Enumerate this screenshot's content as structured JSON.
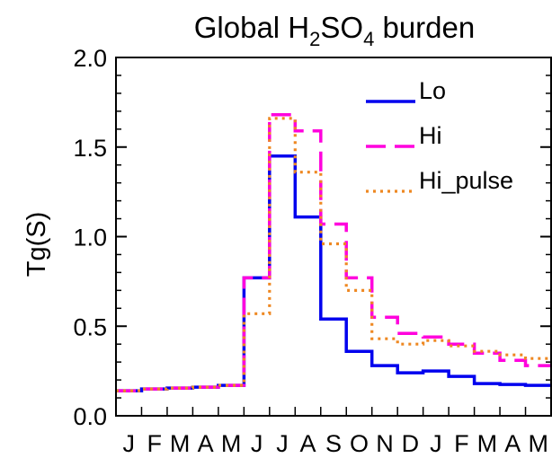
{
  "chart_data": {
    "type": "line",
    "title": {
      "prefix": "Global H",
      "sub1": "2",
      "mid": "SO",
      "sub2": "4",
      "suffix": " burden"
    },
    "ylabel": "Tg(S)",
    "xlabel": "",
    "ylim": [
      0.0,
      2.0
    ],
    "yticks": [
      "0.0",
      "0.5",
      "1.0",
      "1.5",
      "2.0"
    ],
    "month_labels": [
      "J",
      "F",
      "M",
      "A",
      "M",
      "J",
      "J",
      "A",
      "S",
      "O",
      "N",
      "D",
      "J",
      "F",
      "M",
      "A",
      "M"
    ],
    "step": "stairs",
    "legend_position": "top-right",
    "series": [
      {
        "name": "Lo",
        "color": "#0000ee",
        "style": "solid",
        "values": [
          0.14,
          0.15,
          0.155,
          0.16,
          0.17,
          0.77,
          1.45,
          1.11,
          0.54,
          0.36,
          0.28,
          0.24,
          0.25,
          0.22,
          0.18,
          0.175,
          0.17
        ]
      },
      {
        "name": "Hi",
        "color": "#ff00dd",
        "style": "dashed",
        "values": [
          0.14,
          0.15,
          0.155,
          0.16,
          0.17,
          0.77,
          1.68,
          1.59,
          1.07,
          0.77,
          0.55,
          0.46,
          0.44,
          0.4,
          0.35,
          0.31,
          0.28
        ]
      },
      {
        "name": "Hi_pulse",
        "color": "#ee8822",
        "style": "dotted",
        "values": [
          0.14,
          0.15,
          0.155,
          0.16,
          0.17,
          0.57,
          1.66,
          1.36,
          0.96,
          0.7,
          0.43,
          0.4,
          0.42,
          0.39,
          0.36,
          0.34,
          0.32
        ]
      }
    ]
  }
}
